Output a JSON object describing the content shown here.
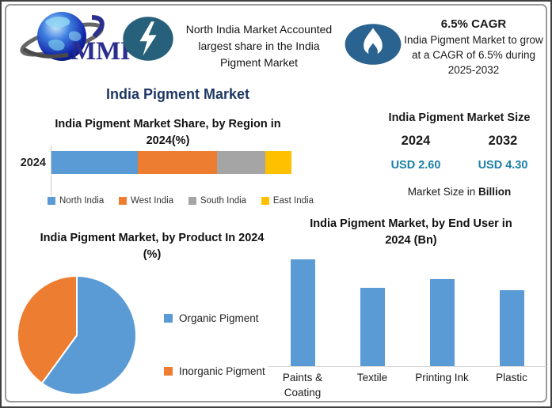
{
  "colors": {
    "navy_title": "#1F3864",
    "usd_value": "#1B80A8",
    "badge_lightning": "#27607A",
    "badge_flame": "#2A6390",
    "series_blue": "#5B9BD5",
    "series_orange": "#ED7D31",
    "series_gray": "#A5A5A5",
    "series_yellow": "#FFC000",
    "frame_border": "#9A9A9A"
  },
  "header": {
    "logo_text": "MMR",
    "lightning_icon": "lightning-bolt",
    "flame_icon": "flame",
    "highlight": {
      "lines": [
        "North India Market Accounted",
        "largest share in the India",
        "Pigment Market"
      ]
    },
    "cagr": {
      "title": "6.5% CAGR",
      "lines": [
        "India Pigment Market to grow",
        "at a CAGR of 6.5% during",
        "2025-2032"
      ]
    }
  },
  "main_title": "India Pigment Market",
  "market_size": {
    "title": "India Pigment Market Size",
    "year_left": "2024",
    "year_right": "2032",
    "value_left": "USD 2.60",
    "value_right": "USD 4.30",
    "note_prefix": "Market Size in ",
    "note_bold": "Billion"
  },
  "chart_data": [
    {
      "type": "bar",
      "subtype": "stacked-horizontal",
      "title": "India Pigment Market Share, by Region in 2024(%)",
      "title_lines": [
        "India Pigment Market Share, by Region in",
        "2024(%)"
      ],
      "row_label": "2024",
      "unit": "%",
      "legend_position": "bottom",
      "series": [
        {
          "name": "North India",
          "value": 36,
          "color": "#5B9BD5"
        },
        {
          "name": "West India",
          "value": 33,
          "color": "#ED7D31"
        },
        {
          "name": "South India",
          "value": 20,
          "color": "#A5A5A5"
        },
        {
          "name": "East India",
          "value": 11,
          "color": "#FFC000"
        }
      ]
    },
    {
      "type": "pie",
      "title": "India Pigment Market, by Product In 2024 (%)",
      "title_lines": [
        "India Pigment Market, by Product In 2024",
        "(%)"
      ],
      "unit": "%",
      "start_angle_deg": 0,
      "legend_position": "right",
      "slices": [
        {
          "name": "Organic Pigment",
          "value": 60,
          "color": "#5B9BD5"
        },
        {
          "name": "Inorganic Pigment",
          "value": 40,
          "color": "#ED7D31"
        }
      ]
    },
    {
      "type": "bar",
      "subtype": "vertical",
      "title": "India Pigment Market, by End User in 2024 (Bn)",
      "title_lines": [
        "India Pigment Market, by End User in",
        "2024 (Bn)"
      ],
      "categories": [
        "Paints & Coating",
        "Textile",
        "Printing Ink",
        "Plastic"
      ],
      "values": [
        0.9,
        0.66,
        0.73,
        0.64
      ],
      "bar_color": "#5B9BD5",
      "ylim": [
        0,
        0.95
      ],
      "grid": false,
      "legend": false
    }
  ]
}
